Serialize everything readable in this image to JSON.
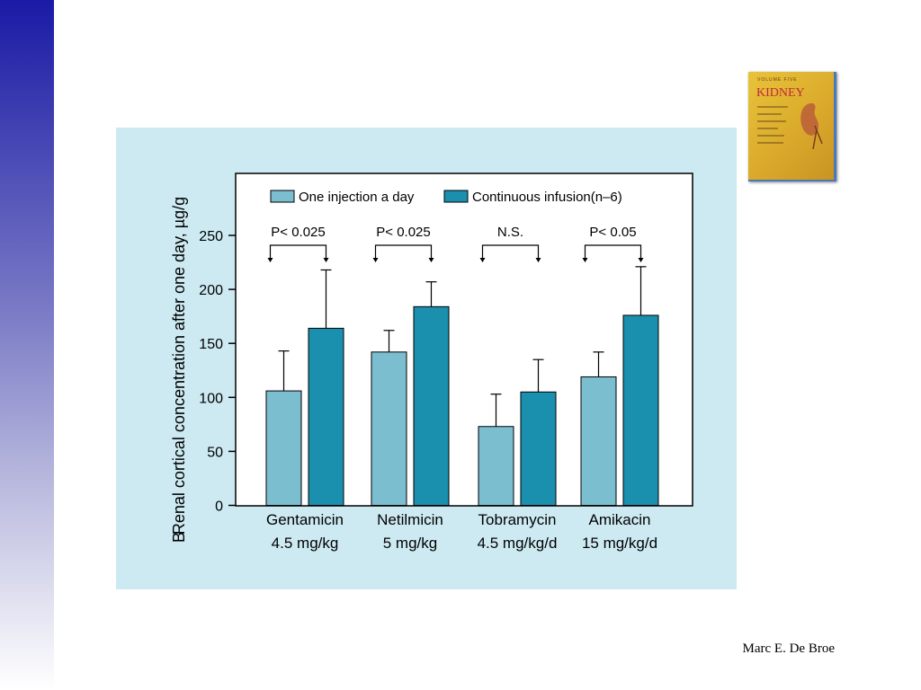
{
  "footer": {
    "author": "Marc E. De Broe"
  },
  "book_cover": {
    "title": "KIDNEY",
    "volume": "VOLUME FIVE"
  },
  "panel_label": "B",
  "colors": {
    "one_injection": "#7bbed0",
    "continuous": "#1a8fae",
    "background": "#cdeaf2"
  },
  "chart_data": {
    "type": "bar",
    "ylabel": "Renal cortical concentration after one day, µg/g",
    "ylim": [
      0,
      300
    ],
    "yticks": [
      0,
      50,
      100,
      150,
      200,
      250
    ],
    "categories": [
      {
        "name": "Gentamicin",
        "dose": "4.5 mg/kg"
      },
      {
        "name": "Netilmicin",
        "dose": "5 mg/kg"
      },
      {
        "name": "Tobramycin",
        "dose": "4.5 mg/kg/d"
      },
      {
        "name": "Amikacin",
        "dose": "15 mg/kg/d"
      }
    ],
    "series": [
      {
        "name": "One injection a day",
        "values": [
          106,
          142,
          73,
          119
        ],
        "errors": [
          37,
          20,
          30,
          23
        ]
      },
      {
        "name": "Continuous infusion(n–6)",
        "values": [
          164,
          184,
          105,
          176
        ],
        "errors": [
          54,
          23,
          30,
          45
        ]
      }
    ],
    "significance": [
      "P< 0.025",
      "P< 0.025",
      "N.S.",
      "P< 0.05"
    ],
    "legend": "top"
  }
}
